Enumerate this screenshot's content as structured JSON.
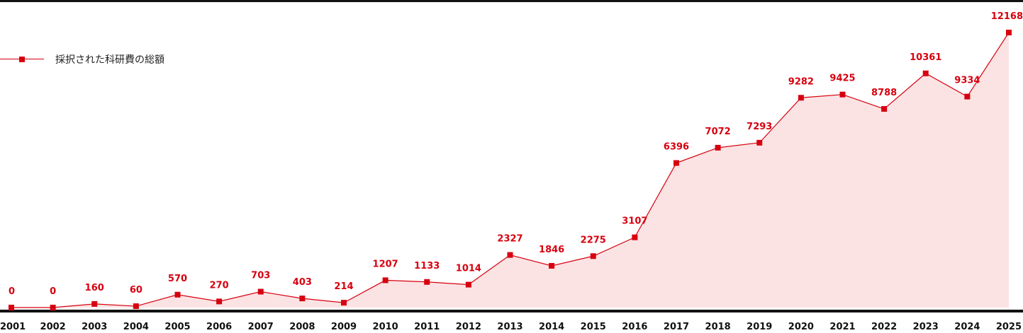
{
  "chart_data": {
    "type": "area",
    "series": [
      {
        "name": "採択された科研費の総額",
        "color": "#d7000f",
        "fill": "#fbe3e4",
        "x": [
          "2001",
          "2002",
          "2003",
          "2004",
          "2005",
          "2006",
          "2007",
          "2008",
          "2009",
          "2010",
          "2011",
          "2012",
          "2013",
          "2014",
          "2015",
          "2016",
          "2017",
          "2018",
          "2019",
          "2020",
          "2021",
          "2022",
          "2023",
          "2024",
          "2025"
        ],
        "values": [
          0,
          0,
          160,
          60,
          570,
          270,
          703,
          403,
          214,
          1207,
          1133,
          1014,
          2327,
          1846,
          2275,
          3107,
          6396,
          7072,
          7293,
          9282,
          9425,
          8788,
          10361,
          9334,
          12168
        ]
      }
    ],
    "xlabel": "",
    "ylabel": "",
    "ylim": [
      0,
      12168
    ],
    "grid": false,
    "data_labels": true,
    "legend_position": "top-left"
  }
}
